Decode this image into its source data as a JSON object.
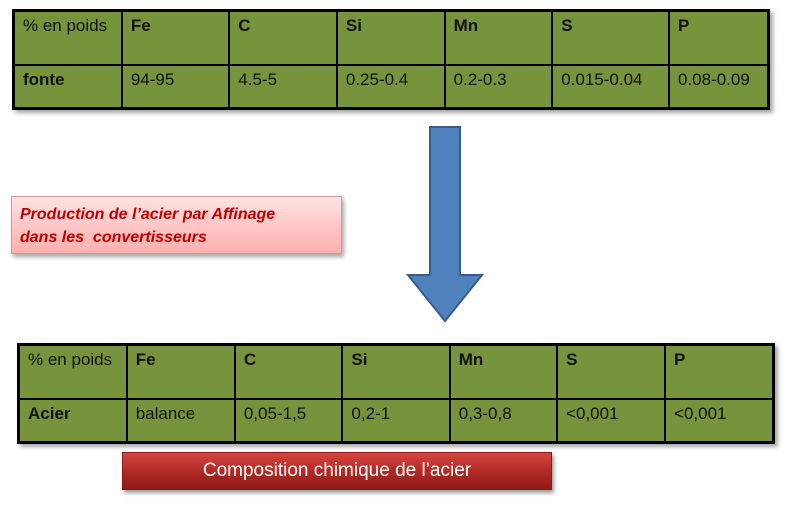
{
  "fonte_table": {
    "headers": [
      "% en poids",
      "Fe",
      "C",
      "Si",
      "Mn",
      "S",
      "P"
    ],
    "row": [
      "fonte",
      "94-95",
      "4.5-5",
      "0.25-0.4",
      "0.2-0.3",
      "0.015-0.04",
      "0.08-0.09"
    ]
  },
  "process_label": {
    "line1": "Production de l’acier par Affinage",
    "line2": "dans les  convertisseurs"
  },
  "acier_table": {
    "headers": [
      "% en poids",
      "Fe",
      "C",
      "Si",
      "Mn",
      "S",
      "P"
    ],
    "row": [
      "Acier",
      "balance",
      "0,05-1,5",
      "0,2-1",
      "0,3-0,8",
      "<0,001",
      "<0,001"
    ]
  },
  "caption": "Composition chimique de l’acier",
  "colors": {
    "table_fill": "#77933c",
    "arrow_fill": "#4f81bd",
    "label_text": "#c00000",
    "caption_fill": "#b22a25"
  }
}
